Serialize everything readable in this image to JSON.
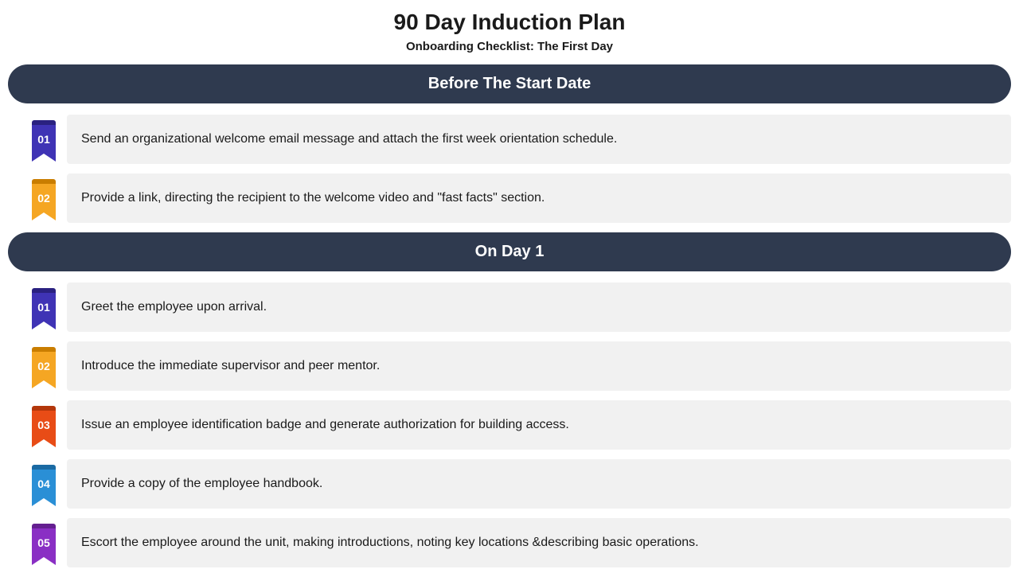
{
  "title": "90 Day Induction Plan",
  "subtitle": "Onboarding Checklist: The First Day",
  "colors": {
    "header_bg": "#2f3a4f",
    "header_text": "#ffffff",
    "item_bg": "#f1f1f1",
    "item_text": "#1a1a1a",
    "page_bg": "#ffffff"
  },
  "sections": [
    {
      "heading": "Before The Start Date",
      "items": [
        {
          "num": "01",
          "text": "Send an organizational welcome email message and attach the first week orientation schedule.",
          "ribbon_color": "#3f33b5",
          "ribbon_dark": "#2a2180"
        },
        {
          "num": "02",
          "text": "Provide a link, directing the recipient to the welcome video and \"fast facts\" section.",
          "ribbon_color": "#f5a623",
          "ribbon_dark": "#c97d00"
        }
      ]
    },
    {
      "heading": "On Day 1",
      "items": [
        {
          "num": "01",
          "text": "Greet the employee upon arrival.",
          "ribbon_color": "#3f33b5",
          "ribbon_dark": "#2a2180"
        },
        {
          "num": "02",
          "text": "Introduce the immediate supervisor and peer mentor.",
          "ribbon_color": "#f5a623",
          "ribbon_dark": "#c97d00"
        },
        {
          "num": "03",
          "text": "Issue an employee identification badge and generate authorization for building access.",
          "ribbon_color": "#e84c16",
          "ribbon_dark": "#b3370b"
        },
        {
          "num": "04",
          "text": "Provide a copy of the employee handbook.",
          "ribbon_color": "#2a8fd6",
          "ribbon_dark": "#1a6aa3"
        },
        {
          "num": "05",
          "text": "Escort the employee around the unit, making introductions, noting key locations &describing basic operations.",
          "ribbon_color": "#8a2fc4",
          "ribbon_dark": "#641f90"
        }
      ]
    }
  ]
}
